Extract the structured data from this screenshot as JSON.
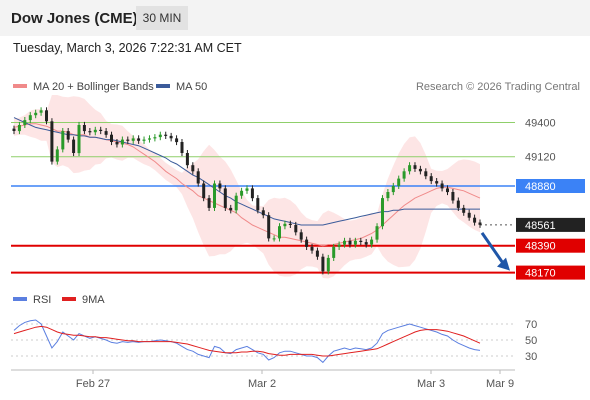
{
  "header": {
    "title": "Dow Jones (CME)",
    "timeframe": "30 MIN"
  },
  "timestamp": "Tuesday, March 3, 2026 7:22:31 AM CET",
  "legend": {
    "ma20_label": "MA 20 + Bollinger Bands",
    "ma50_label": "MA 50",
    "copyright": "Research © 2026 Trading Central"
  },
  "rsi_legend": {
    "rsi_label": "RSI",
    "ma_label": "9MA"
  },
  "colors": {
    "ma20": "#f08a8a",
    "ma50": "#3b5b9a",
    "bollinger": "#fde0e0",
    "resistance": "#8fcf6a",
    "pivot": "#3b82f6",
    "support": "#e00000",
    "current": "#222222",
    "arrow": "#1f56a8",
    "rsi": "#5b7fe0",
    "rsi_ma": "#e02020",
    "candle_up": "#2a9a2a",
    "candle_down": "#222222"
  },
  "chart_data": [
    {
      "type": "line",
      "title": "",
      "x_ticks": [
        "Feb 27",
        "Mar 2",
        "Mar 3",
        "Mar 9"
      ],
      "ylim": [
        48150,
        49560
      ],
      "levels": [
        {
          "value": 49400,
          "label": "49400",
          "kind": "resistance"
        },
        {
          "value": 49120,
          "label": "49120",
          "kind": "resistance"
        },
        {
          "value": 48880,
          "label": "48880",
          "kind": "pivot"
        },
        {
          "value": 48561,
          "label": "48561",
          "kind": "current"
        },
        {
          "value": 48390,
          "label": "48390",
          "kind": "support"
        },
        {
          "value": 48170,
          "label": "48170",
          "kind": "support"
        }
      ],
      "close": [
        49330,
        49380,
        49420,
        49460,
        49480,
        49500,
        49410,
        49080,
        49180,
        49330,
        49260,
        49150,
        49380,
        49330,
        49320,
        49340,
        49330,
        49300,
        49240,
        49220,
        49260,
        49250,
        49270,
        49250,
        49260,
        49270,
        49280,
        49300,
        49290,
        49270,
        49240,
        49150,
        49050,
        49000,
        48900,
        48780,
        48700,
        48900,
        48860,
        48700,
        48680,
        48800,
        48840,
        48860,
        48780,
        48680,
        48640,
        48450,
        48450,
        48550,
        48570,
        48560,
        48500,
        48440,
        48380,
        48350,
        48300,
        48180,
        48290,
        48380,
        48400,
        48430,
        48400,
        48430,
        48420,
        48400,
        48440,
        48550,
        48780,
        48830,
        48880,
        48940,
        49000,
        49050,
        49020,
        49000,
        48960,
        48920,
        48900,
        48860,
        48830,
        48760,
        48700,
        48660,
        48620,
        48580,
        48561
      ],
      "ma20": [
        49360,
        49370,
        49380,
        49390,
        49390,
        49380,
        49370,
        49350,
        49330,
        49330,
        49320,
        49300,
        49300,
        49300,
        49280,
        49280,
        49270,
        49260,
        49250,
        49240,
        49230,
        49220,
        49200,
        49170,
        49140,
        49110,
        49080,
        49040,
        49000,
        48970,
        48940,
        48900,
        48870,
        48840,
        48800,
        48780,
        48760,
        48740,
        48720,
        48700,
        48680,
        48660,
        48620,
        48590,
        48560,
        48540,
        48520,
        48500,
        48480,
        48460,
        48460,
        48450,
        48440,
        48430,
        48420,
        48410,
        48400,
        48390,
        48400,
        48400,
        48410,
        48420,
        48430,
        48440,
        48450,
        48470,
        48490,
        48520,
        48560,
        48600,
        48640,
        48680,
        48720,
        48750,
        48780,
        48800,
        48820,
        48840,
        48860,
        48870,
        48870,
        48860,
        48850,
        48840,
        48820,
        48800,
        48780
      ],
      "ma50": [
        49440,
        49420,
        49400,
        49380,
        49360,
        49350,
        49340,
        49330,
        49320,
        49310,
        49300,
        49300,
        49290,
        49290,
        49280,
        49280,
        49270,
        49260,
        49260,
        49250,
        49240,
        49230,
        49220,
        49210,
        49190,
        49170,
        49150,
        49130,
        49110,
        49080,
        49060,
        49030,
        49000,
        48970,
        48950,
        48920,
        48890,
        48860,
        48830,
        48800,
        48780,
        48750,
        48730,
        48710,
        48690,
        48670,
        48650,
        48630,
        48610,
        48600,
        48590,
        48580,
        48570,
        48560,
        48560,
        48560,
        48560,
        48560,
        48570,
        48580,
        48590,
        48600,
        48610,
        48620,
        48630,
        48640,
        48650,
        48660,
        48670,
        48670,
        48680,
        48680,
        48690,
        48690,
        48690,
        48690,
        48690,
        48690,
        48690,
        48690,
        48690,
        48690,
        48690,
        48690,
        48690,
        48690,
        48690
      ],
      "forecast": [
        48561,
        48170
      ]
    },
    {
      "type": "line",
      "title": "",
      "yticks": [
        30,
        50,
        70
      ],
      "ylim": [
        20,
        85
      ],
      "rsi": [
        62,
        68,
        72,
        74,
        75,
        70,
        55,
        40,
        48,
        60,
        55,
        50,
        58,
        55,
        52,
        54,
        52,
        50,
        47,
        46,
        48,
        47,
        48,
        47,
        48,
        48,
        49,
        50,
        49,
        48,
        46,
        42,
        38,
        36,
        32,
        30,
        28,
        42,
        40,
        34,
        33,
        38,
        40,
        42,
        38,
        34,
        32,
        25,
        28,
        34,
        36,
        36,
        34,
        32,
        30,
        30,
        28,
        22,
        30,
        36,
        38,
        40,
        38,
        40,
        39,
        38,
        40,
        46,
        58,
        62,
        64,
        66,
        68,
        70,
        68,
        66,
        64,
        62,
        60,
        57,
        55,
        50,
        46,
        43,
        40,
        38,
        37
      ],
      "rsi_ma": [
        58,
        60,
        62,
        64,
        66,
        67,
        66,
        63,
        60,
        58,
        57,
        56,
        56,
        55,
        54,
        54,
        53,
        53,
        52,
        51,
        50,
        49,
        49,
        48,
        48,
        48,
        48,
        48,
        48,
        48,
        47,
        46,
        45,
        43,
        41,
        39,
        37,
        36,
        35,
        34,
        34,
        34,
        35,
        35,
        36,
        36,
        35,
        33,
        32,
        31,
        31,
        32,
        32,
        32,
        32,
        32,
        31,
        30,
        30,
        31,
        32,
        33,
        34,
        35,
        36,
        37,
        38,
        39,
        42,
        45,
        48,
        51,
        54,
        57,
        60,
        62,
        63,
        63,
        63,
        62,
        61,
        59,
        57,
        55,
        52,
        49,
        46
      ]
    }
  ]
}
